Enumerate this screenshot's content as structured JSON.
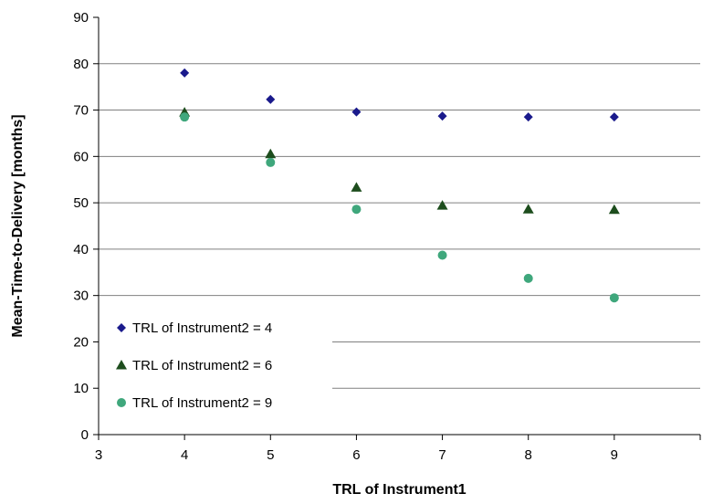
{
  "chart_data": {
    "type": "scatter",
    "title": "",
    "xlabel": "TRL of Instrument1",
    "ylabel": "Mean-Time-to-Delivery [months]",
    "xlim": [
      3,
      10
    ],
    "ylim": [
      0,
      90
    ],
    "x_ticks": [
      3,
      4,
      5,
      6,
      7,
      8,
      9
    ],
    "y_ticks": [
      0,
      10,
      20,
      30,
      40,
      50,
      60,
      70,
      80,
      90
    ],
    "grid": "horizontal major gridlines",
    "legend_position": "bottom-left",
    "series": [
      {
        "name": "TRL of Instrument2 = 4",
        "marker": "diamond",
        "color": "#1a1a8c",
        "x": [
          4,
          5,
          6,
          7,
          8,
          9
        ],
        "y": [
          78,
          72.3,
          69.6,
          68.7,
          68.5,
          68.5
        ]
      },
      {
        "name": "TRL of Instrument2 = 6",
        "marker": "triangle",
        "color": "#1d4d1d",
        "x": [
          4,
          5,
          6,
          7,
          8,
          9
        ],
        "y": [
          69.5,
          60.5,
          53.3,
          49.4,
          48.6,
          48.5
        ]
      },
      {
        "name": "TRL of Instrument2 = 9",
        "marker": "circle",
        "color": "#3fa77c",
        "x": [
          4,
          5,
          6,
          7,
          8,
          9
        ],
        "y": [
          68.5,
          58.7,
          48.6,
          38.7,
          33.7,
          29.5
        ]
      }
    ]
  }
}
